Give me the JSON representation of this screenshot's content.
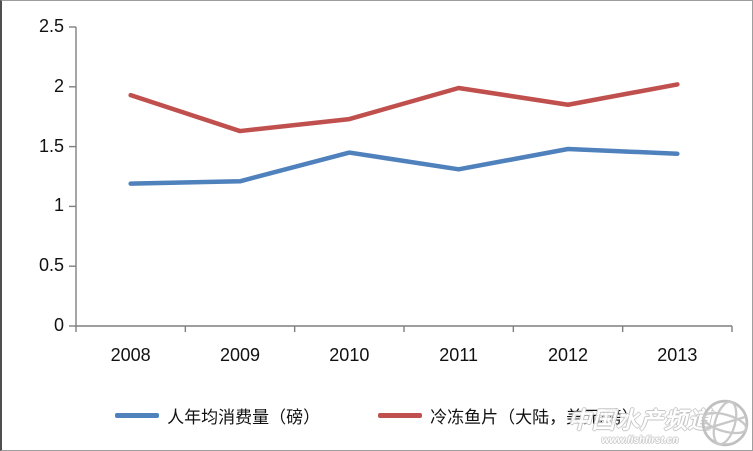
{
  "chart_data": {
    "type": "line",
    "categories": [
      "2008",
      "2009",
      "2010",
      "2011",
      "2012",
      "2013"
    ],
    "series": [
      {
        "name": "人年均消费量（磅）",
        "color": "#4f81bd",
        "values": [
          1.19,
          1.21,
          1.45,
          1.31,
          1.48,
          1.44
        ]
      },
      {
        "name": "冷冻鱼片（大陆，美元/磅）",
        "color": "#c0504d",
        "values": [
          1.93,
          1.63,
          1.73,
          1.99,
          1.85,
          2.02
        ]
      }
    ],
    "title": "",
    "xlabel": "",
    "ylabel": "",
    "ylim": [
      0,
      2.5
    ],
    "ytick_step": 0.5,
    "yticks": [
      "0",
      "0.5",
      "1",
      "1.5",
      "2",
      "2.5"
    ],
    "grid": false,
    "legend_position": "bottom"
  },
  "watermark": {
    "title": "中国水产频道",
    "url": "www.fishfirst.cn"
  },
  "colors": {
    "axis": "#7f7f7f",
    "text": "#111111",
    "series_blue": "#4f81bd",
    "series_red": "#c0504d"
  }
}
